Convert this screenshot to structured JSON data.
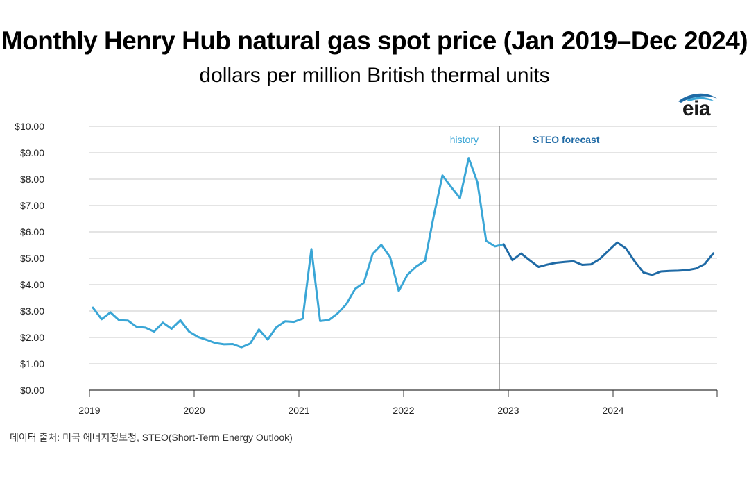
{
  "chart_data": {
    "type": "line",
    "title": "Monthly Henry Hub natural gas spot price (Jan 2019–Dec 2024)",
    "subtitle": "dollars per million British thermal units",
    "xlabel": "",
    "ylabel": "",
    "ylim": [
      0,
      10
    ],
    "yticks": [
      "$0.00",
      "$1.00",
      "$2.00",
      "$3.00",
      "$4.00",
      "$5.00",
      "$6.00",
      "$7.00",
      "$8.00",
      "$9.00",
      "$10.00"
    ],
    "xticks": [
      "2019",
      "2020",
      "2021",
      "2022",
      "2023",
      "2024"
    ],
    "grid": true,
    "annotations": {
      "history": "history",
      "forecast": "STEO forecast"
    },
    "series": [
      {
        "name": "history",
        "color": "#3aa6d6",
        "start": "2019-01",
        "values": [
          3.13,
          2.69,
          2.95,
          2.65,
          2.64,
          2.4,
          2.37,
          2.22,
          2.56,
          2.33,
          2.65,
          2.22,
          2.02,
          1.91,
          1.79,
          1.74,
          1.75,
          1.63,
          1.77,
          2.3,
          1.92,
          2.39,
          2.61,
          2.59,
          2.71,
          5.35,
          2.62,
          2.66,
          2.91,
          3.26,
          3.84,
          4.07,
          5.16,
          5.51,
          5.05,
          3.76,
          4.38,
          4.69,
          4.9,
          6.6,
          8.14,
          7.7,
          7.28,
          8.8,
          7.88,
          5.66,
          5.45,
          5.53
        ]
      },
      {
        "name": "STEO forecast",
        "color": "#1f6aa5",
        "start": "2022-12",
        "values": [
          5.53,
          4.93,
          5.18,
          4.92,
          4.67,
          4.76,
          4.83,
          4.86,
          4.89,
          4.75,
          4.77,
          4.97,
          5.29,
          5.6,
          5.37,
          4.88,
          4.46,
          4.37,
          4.5,
          4.52,
          4.53,
          4.55,
          4.61,
          4.78,
          5.19
        ]
      }
    ]
  },
  "footer": {
    "source": "데이터 출처: 미국 에너지정보청, STEO(Short-Term Energy Outlook)"
  },
  "logo": {
    "text": "eia",
    "color": "#1f6aa5"
  }
}
